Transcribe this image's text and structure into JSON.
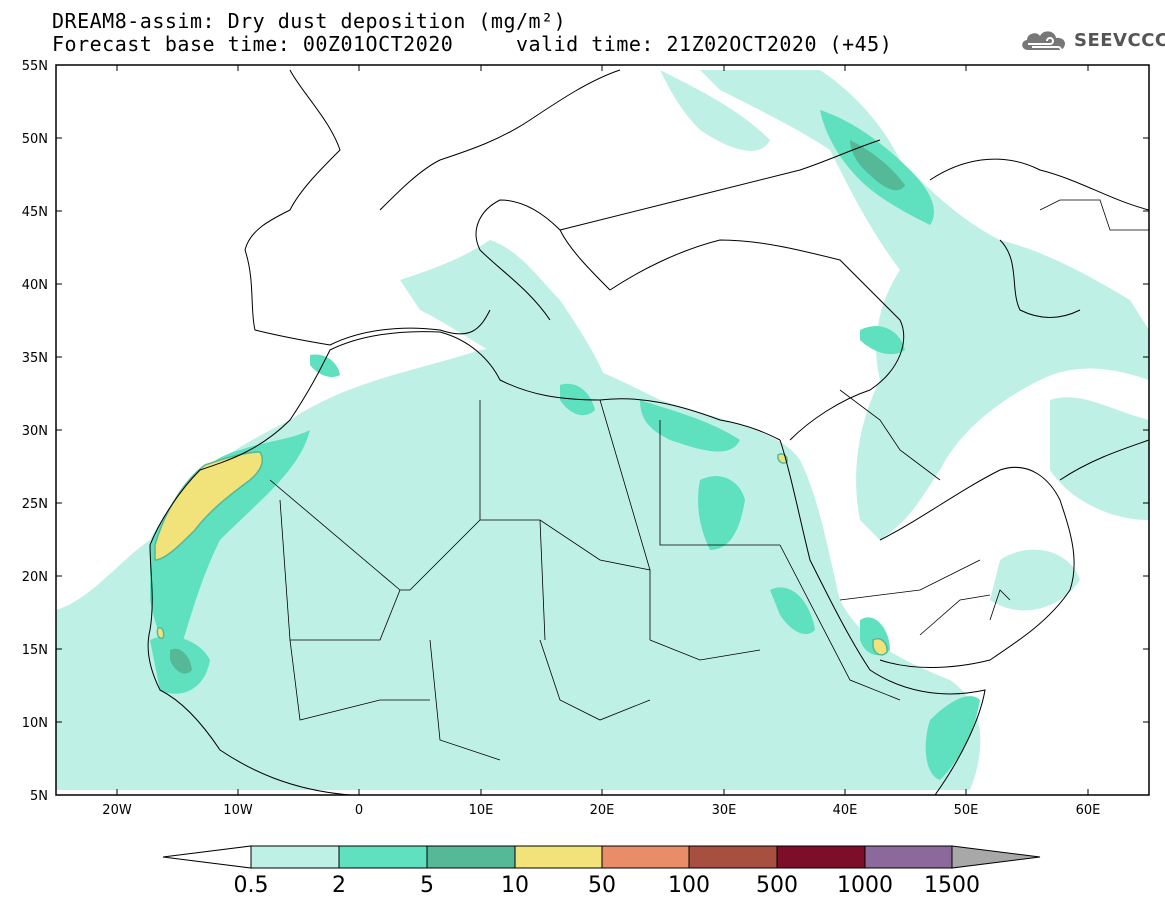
{
  "header": {
    "title_line1": "DREAM8-assim: Dry dust deposition (mg/m²)",
    "title_line2": "Forecast base time: 00Z01OCT2020     valid time: 21Z02OCT2020 (+45)"
  },
  "logo": {
    "text": "SEEVCCC",
    "icon": "cloud-icon"
  },
  "map": {
    "lon_range": [
      -25,
      65
    ],
    "lat_range": [
      5,
      55
    ],
    "lat_ticks": [
      "55N",
      "50N",
      "45N",
      "40N",
      "35N",
      "30N",
      "25N",
      "20N",
      "15N",
      "10N",
      "5N"
    ],
    "lon_ticks": [
      "20W",
      "10W",
      "0",
      "10E",
      "20E",
      "30E",
      "40E",
      "50E",
      "60E"
    ]
  },
  "legend": {
    "labels": [
      "0.5",
      "2",
      "5",
      "10",
      "50",
      "100",
      "500",
      "1000",
      "1500"
    ],
    "colors": [
      "#bff0e6",
      "#5fe0bf",
      "#55b896",
      "#f2e27a",
      "#e98d69",
      "#a8503f",
      "#7d0e2a",
      "#8b6a9b",
      "#a8a8a8"
    ],
    "low_color": "#ffffff",
    "high_color": "#a8a8a8"
  }
}
